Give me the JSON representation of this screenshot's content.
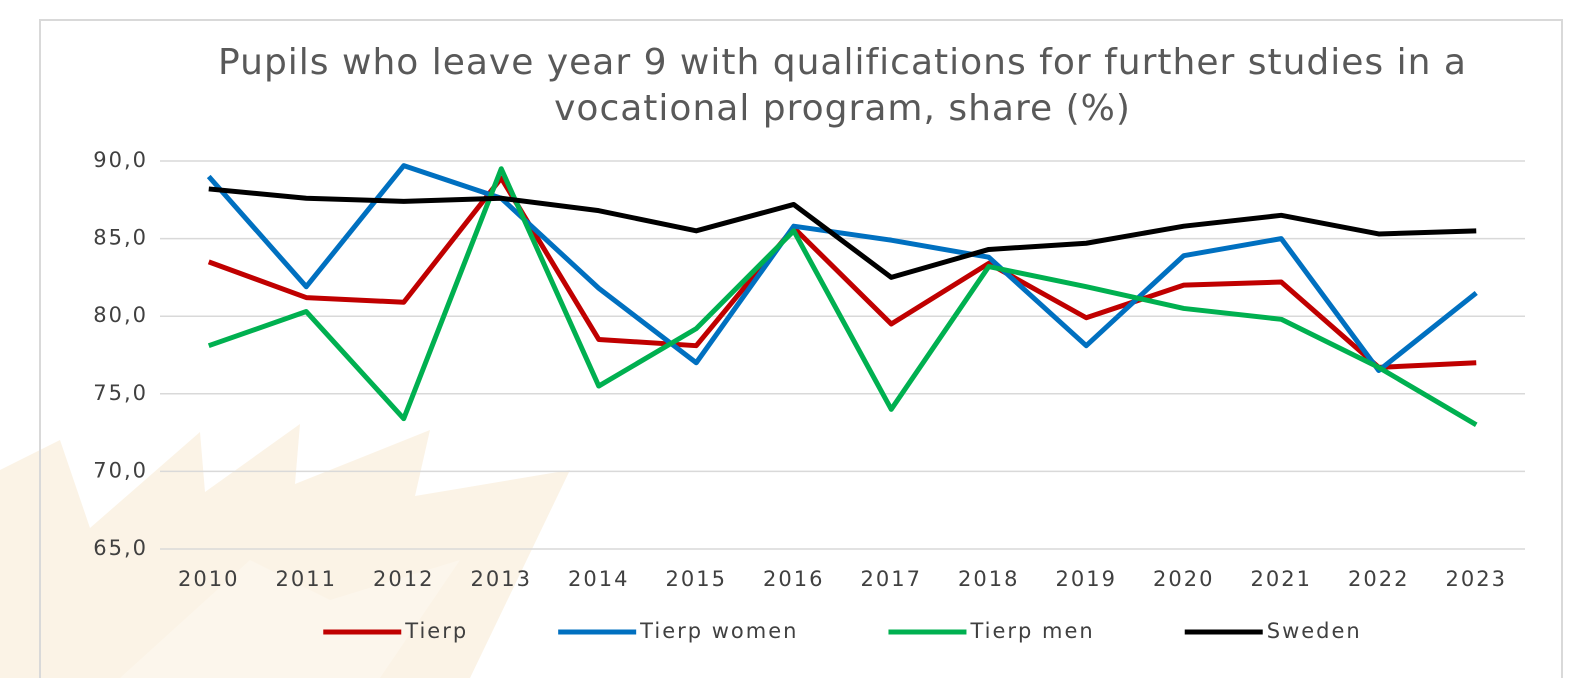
{
  "chart_data": {
    "type": "line",
    "title": "Pupils who leave year 9 with qualifications for further studies in a vocational program, share (%)",
    "categories": [
      "2010",
      "2011",
      "2012",
      "2013",
      "2014",
      "2015",
      "2016",
      "2017",
      "2018",
      "2019",
      "2020",
      "2021",
      "2022",
      "2023"
    ],
    "series": [
      {
        "name": "Tierp",
        "color": "#c00000",
        "values": [
          83.5,
          81.2,
          80.9,
          88.9,
          78.5,
          78.1,
          85.7,
          79.5,
          83.4,
          79.9,
          82.0,
          82.2,
          76.7,
          77.0
        ]
      },
      {
        "name": "Tierp women",
        "color": "#0070c0",
        "values": [
          89.0,
          81.9,
          89.7,
          87.6,
          81.8,
          77.0,
          85.8,
          84.9,
          83.8,
          78.1,
          83.9,
          85.0,
          76.5,
          81.5
        ]
      },
      {
        "name": "Tierp men",
        "color": "#00b050",
        "values": [
          78.1,
          80.3,
          73.4,
          89.5,
          75.5,
          79.2,
          85.5,
          74.0,
          83.2,
          81.9,
          80.5,
          79.8,
          76.7,
          73.0
        ]
      },
      {
        "name": "Sweden",
        "color": "#000000",
        "values": [
          88.2,
          87.6,
          87.4,
          87.6,
          86.8,
          85.5,
          87.2,
          82.5,
          84.3,
          84.7,
          85.8,
          86.5,
          85.3,
          85.5
        ]
      }
    ],
    "ylim": [
      65,
      90
    ],
    "yticks": [
      {
        "value": 65,
        "label": "65,0"
      },
      {
        "value": 70,
        "label": "70,0"
      },
      {
        "value": 75,
        "label": "75,0"
      },
      {
        "value": 80,
        "label": "80,0"
      },
      {
        "value": 85,
        "label": "85,0"
      },
      {
        "value": 90,
        "label": "90,0"
      }
    ],
    "grid": true,
    "legend": "bottom"
  }
}
